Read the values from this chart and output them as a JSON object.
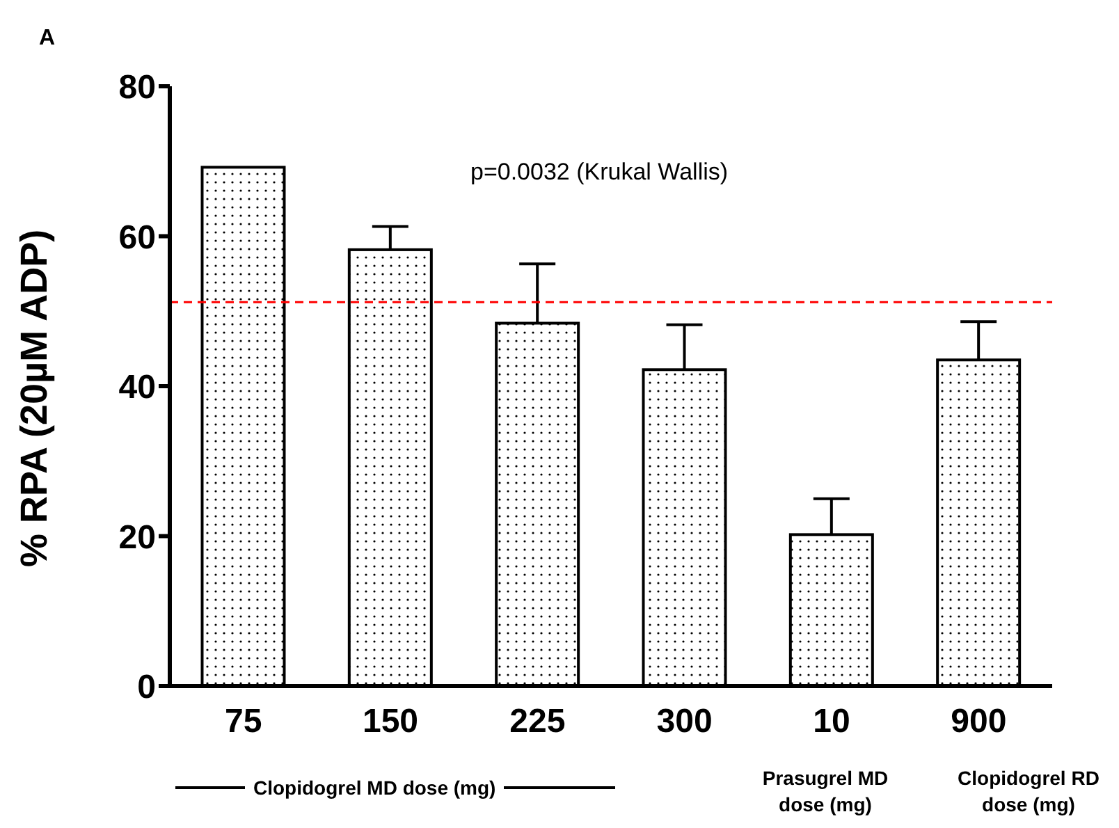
{
  "chart_data": {
    "type": "bar",
    "ylabel": "% RPA (20µM ADP)",
    "categories": [
      "75",
      "150",
      "225",
      "300",
      "10",
      "900"
    ],
    "values": [
      69.2,
      58.2,
      48.4,
      42.2,
      20.2,
      43.5
    ],
    "errors": [
      null,
      [
        58.2,
        61.3
      ],
      [
        48.4,
        56.3
      ],
      [
        42.2,
        48.2
      ],
      [
        20.2,
        25.0
      ],
      [
        43.5,
        48.6
      ]
    ],
    "color": "#000000",
    "ylim": [
      0,
      80
    ],
    "yticks": [
      0,
      20,
      40,
      60,
      80
    ],
    "grid": false,
    "ref_lines": [
      {
        "axis": "y",
        "value": 51.2,
        "color": "#ff0000",
        "line_style": "dashed"
      }
    ],
    "annotations": [
      "A",
      "p=0.0032 (Krukal Wallis)",
      "Clopidogrel MD dose (mg)",
      "Prasugrel MD dose (mg)",
      "Clopidogrel RD dose (mg)"
    ]
  }
}
